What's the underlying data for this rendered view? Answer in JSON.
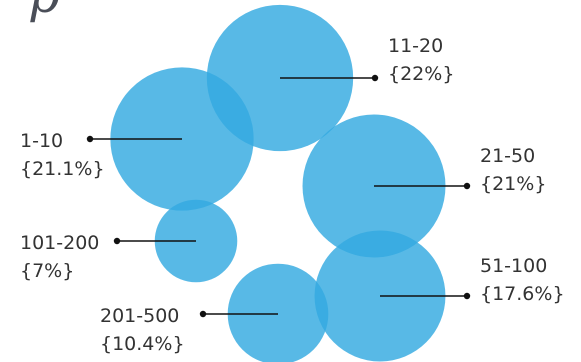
{
  "chart_data": {
    "type": "bubble",
    "title_fragment": "p",
    "bubble_color": "#33a9e1",
    "overlap_color": "#1a7fd0",
    "items": [
      {
        "category": "1-10",
        "value_label": "{21.1%}",
        "percent": 21.1
      },
      {
        "category": "11-20",
        "value_label": "{22%}",
        "percent": 22
      },
      {
        "category": "21-50",
        "value_label": "{21%}",
        "percent": 21
      },
      {
        "category": "51-100",
        "value_label": "{17.6%}",
        "percent": 17.6
      },
      {
        "category": "101-200",
        "value_label": "{7%}",
        "percent": 7
      },
      {
        "category": "201-500",
        "value_label": "{10.4%}",
        "percent": 10.4
      }
    ]
  }
}
